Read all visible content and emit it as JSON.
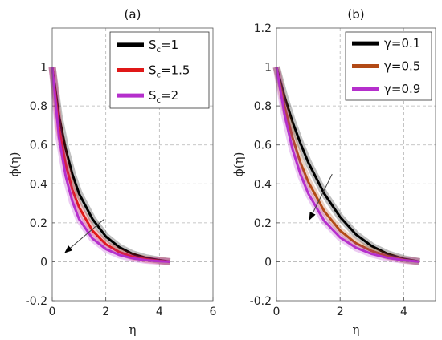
{
  "chart_data": [
    {
      "type": "line",
      "title": "(a)",
      "xlabel": "η",
      "ylabel": "ϕ(η)",
      "xlim": [
        0,
        6
      ],
      "ylim": [
        -0.2,
        1.2
      ],
      "xticks": [
        "0",
        "2",
        "4",
        "6"
      ],
      "yticks": [
        "-0.2",
        "0",
        "0.2",
        "0.4",
        "0.6",
        "0.8",
        "1"
      ],
      "grid": true,
      "legend_position": "top-right",
      "series": [
        {
          "name_main": "S",
          "name_sub": "c",
          "name_tail": "=1",
          "color": "#000000",
          "x": [
            0,
            0.25,
            0.5,
            0.75,
            1,
            1.5,
            2,
            2.5,
            3,
            3.5,
            4,
            4.4
          ],
          "y": [
            1,
            0.75,
            0.58,
            0.45,
            0.35,
            0.22,
            0.13,
            0.075,
            0.04,
            0.02,
            0.008,
            0
          ]
        },
        {
          "name_main": "S",
          "name_sub": "c",
          "name_tail": "=1.5",
          "color": "#e01818",
          "x": [
            0,
            0.25,
            0.5,
            0.75,
            1,
            1.5,
            2,
            2.5,
            3,
            3.5,
            4,
            4.4
          ],
          "y": [
            1,
            0.69,
            0.5,
            0.37,
            0.28,
            0.16,
            0.09,
            0.05,
            0.026,
            0.012,
            0.005,
            0
          ]
        },
        {
          "name_main": "S",
          "name_sub": "c",
          "name_tail": "=2",
          "color": "#b52fcc",
          "x": [
            0,
            0.25,
            0.5,
            0.75,
            1,
            1.5,
            2,
            2.5,
            3,
            3.5,
            4,
            4.4
          ],
          "y": [
            1,
            0.64,
            0.44,
            0.31,
            0.22,
            0.12,
            0.065,
            0.035,
            0.018,
            0.008,
            0.003,
            0
          ]
        }
      ],
      "arrow": {
        "from": [
          1.95,
          0.22
        ],
        "to": [
          0.5,
          0.05
        ]
      }
    },
    {
      "type": "line",
      "title": "(b)",
      "xlabel": "η",
      "ylabel": "ϕ(η)",
      "xlim": [
        0,
        5
      ],
      "ylim": [
        -0.2,
        1.2
      ],
      "xticks": [
        "0",
        "2",
        "4"
      ],
      "yticks": [
        "-0.2",
        "0",
        "0.2",
        "0.4",
        "0.6",
        "0.8",
        "1",
        "1.2"
      ],
      "grid": true,
      "legend_position": "top-right",
      "series": [
        {
          "name_main": "γ=0.1",
          "name_sub": "",
          "name_tail": "",
          "color": "#000000",
          "x": [
            0,
            0.25,
            0.5,
            0.75,
            1,
            1.5,
            2,
            2.5,
            3,
            3.5,
            4,
            4.5
          ],
          "y": [
            1,
            0.85,
            0.72,
            0.61,
            0.51,
            0.35,
            0.23,
            0.14,
            0.08,
            0.04,
            0.015,
            0
          ]
        },
        {
          "name_main": "γ=0.5",
          "name_sub": "",
          "name_tail": "",
          "color": "#b24a16",
          "x": [
            0,
            0.25,
            0.5,
            0.75,
            1,
            1.5,
            2,
            2.5,
            3,
            3.5,
            4,
            4.5
          ],
          "y": [
            1,
            0.8,
            0.64,
            0.51,
            0.41,
            0.26,
            0.16,
            0.095,
            0.055,
            0.028,
            0.01,
            0
          ]
        },
        {
          "name_main": "γ=0.9",
          "name_sub": "",
          "name_tail": "",
          "color": "#b52fcc",
          "x": [
            0,
            0.25,
            0.5,
            0.75,
            1,
            1.5,
            2,
            2.5,
            3,
            3.5,
            4,
            4.5
          ],
          "y": [
            1,
            0.76,
            0.58,
            0.45,
            0.35,
            0.21,
            0.125,
            0.072,
            0.04,
            0.02,
            0.008,
            0
          ]
        }
      ],
      "arrow": {
        "from": [
          1.75,
          0.45
        ],
        "to": [
          1.05,
          0.22
        ]
      }
    }
  ]
}
